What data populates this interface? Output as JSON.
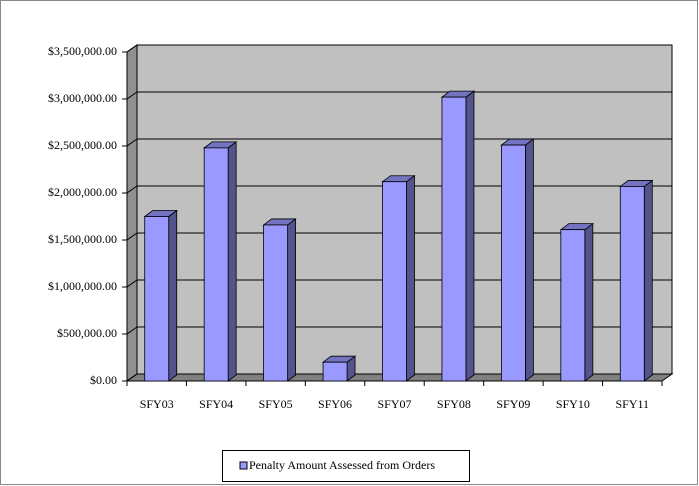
{
  "chart_data": {
    "type": "bar3d",
    "categories": [
      "SFY03",
      "SFY04",
      "SFY05",
      "SFY06",
      "SFY07",
      "SFY08",
      "SFY09",
      "SFY10",
      "SFY11"
    ],
    "series": [
      {
        "name": "Penalty Amount Assessed from Orders",
        "color": "#9999ff",
        "values": [
          1750000,
          2480000,
          1660000,
          200000,
          2120000,
          3020000,
          2510000,
          1610000,
          2070000
        ]
      }
    ],
    "ylim": [
      0,
      3500000
    ],
    "yticks": [
      {
        "value": 0,
        "label": "$0.00"
      },
      {
        "value": 500000,
        "label": "$500,000.00"
      },
      {
        "value": 1000000,
        "label": "$1,000,000.00"
      },
      {
        "value": 1500000,
        "label": "$1,500,000.00"
      },
      {
        "value": 2000000,
        "label": "$2,000,000.00"
      },
      {
        "value": 2500000,
        "label": "$2,500,000.00"
      },
      {
        "value": 3000000,
        "label": "$3,000,000.00"
      },
      {
        "value": 3500000,
        "label": "$3,500,000.00"
      }
    ],
    "grid": true,
    "legend": "bottom"
  }
}
